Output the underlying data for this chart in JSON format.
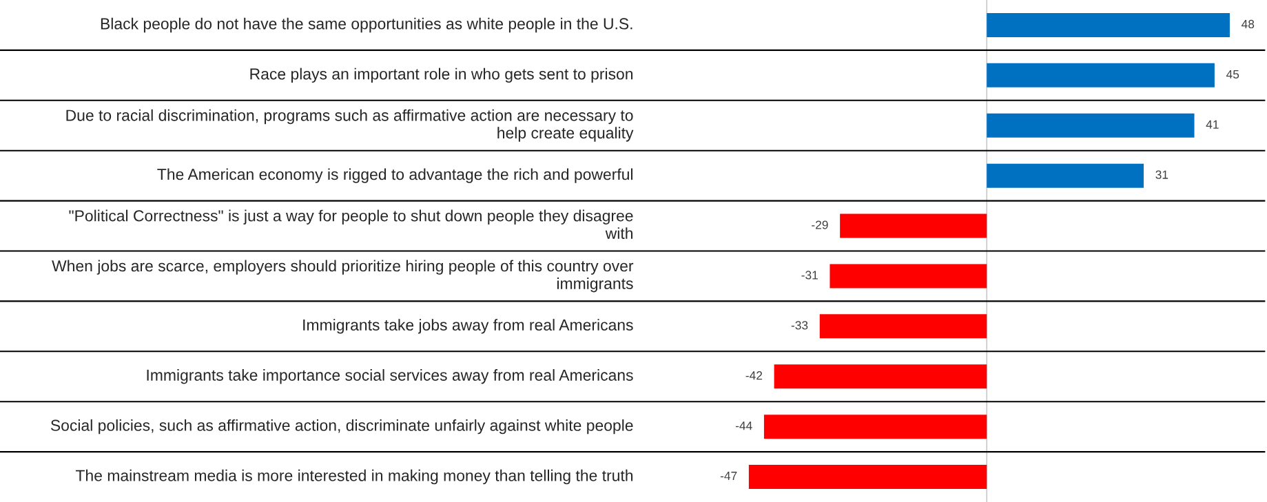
{
  "chart_data": {
    "type": "bar",
    "orientation": "horizontal",
    "data_labels": true,
    "grid": "y",
    "categories": [
      "Black people do not have the same opportunities as white people in the U.S.",
      "Race plays an important role in who gets sent to prison",
      "Due to racial discrimination, programs such as affirmative action are necessary to help create equality",
      "The American economy is rigged to advantage the rich and powerful",
      "\"Political Correctness\" is just a way for people to shut down people they disagree with",
      "When jobs are scarce, employers should prioritize hiring people of this country over immigrants",
      "Immigrants take jobs away from real Americans",
      "Immigrants take importance social services away from real Americans",
      "Social policies, such as affirmative action, discriminate unfairly against white people",
      "The mainstream media is more interested in making money than telling the truth"
    ],
    "values": [
      48,
      45,
      41,
      31,
      -29,
      -31,
      -33,
      -42,
      -44,
      -47
    ],
    "colors": [
      "#0070c0",
      "#0070c0",
      "#0070c0",
      "#0070c0",
      "#ff0000",
      "#ff0000",
      "#ff0000",
      "#ff0000",
      "#ff0000",
      "#ff0000"
    ]
  }
}
